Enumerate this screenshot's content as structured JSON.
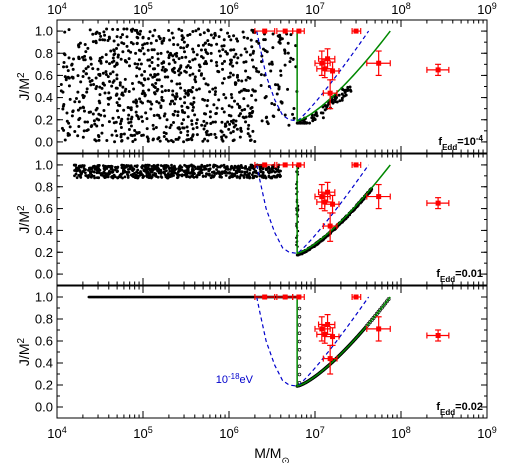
{
  "chart_data": [
    {
      "type": "scatter",
      "panel": "top",
      "xscale": "log",
      "xlim": [
        10000,
        1000000000
      ],
      "ylim": [
        -0.1,
        1.1
      ],
      "ylabel": "J/M^2",
      "annotation": {
        "prefix": "f",
        "sub": "Edd",
        "eq": "=10",
        "sup": "-4"
      },
      "yticks": [
        "0.0",
        "0.2",
        "0.4",
        "0.6",
        "0.8",
        "1.0"
      ],
      "xticks_top": [
        "10^4",
        "10^5",
        "10^6",
        "10^7",
        "10^8",
        "10^9"
      ],
      "simulation": "scattered",
      "measurements": [
        {
          "m": 2600000,
          "j": 1.0,
          "xerr": [
            2000000,
            3400000
          ],
          "yerr": [
            1.0,
            1.0
          ]
        },
        {
          "m": 4500000,
          "j": 1.0,
          "xerr": [
            3600000,
            5500000
          ],
          "yerr": [
            1.0,
            1.0
          ]
        },
        {
          "m": 6500000,
          "j": 1.0,
          "xerr": [
            5500000,
            7500000
          ],
          "yerr": [
            1.0,
            1.0
          ]
        },
        {
          "m": 30000000,
          "j": 1.0,
          "xerr": [
            27000000,
            34000000
          ],
          "yerr": [
            1.0,
            1.0
          ]
        },
        {
          "m": 12000000,
          "j": 0.71,
          "xerr": [
            10000000,
            15000000
          ],
          "yerr": [
            0.6,
            0.82
          ]
        },
        {
          "m": 13000000,
          "j": 0.66,
          "xerr": [
            10500000,
            16000000
          ],
          "yerr": [
            0.58,
            0.74
          ]
        },
        {
          "m": 14000000,
          "j": 0.75,
          "xerr": [
            11000000,
            17000000
          ],
          "yerr": [
            0.66,
            0.84
          ]
        },
        {
          "m": 16000000,
          "j": 0.64,
          "xerr": [
            13000000,
            19000000
          ],
          "yerr": [
            0.56,
            0.72
          ]
        },
        {
          "m": 15000000,
          "j": 0.44,
          "xerr": [
            12500000,
            18000000
          ],
          "yerr": [
            0.3,
            0.56
          ]
        },
        {
          "m": 55000000,
          "j": 0.71,
          "xerr": [
            40000000,
            75000000
          ],
          "yerr": [
            0.6,
            0.82
          ]
        },
        {
          "m": 270000000,
          "j": 0.65,
          "xerr": [
            200000000,
            360000000
          ],
          "yerr": [
            0.6,
            0.7
          ]
        }
      ]
    },
    {
      "type": "scatter",
      "panel": "middle",
      "xscale": "log",
      "xlim": [
        10000,
        1000000000
      ],
      "ylim": [
        -0.1,
        1.1
      ],
      "ylabel": "J/M^2",
      "annotation": {
        "prefix": "f",
        "sub": "Edd",
        "eq": "=0.01",
        "sup": ""
      },
      "yticks": [
        "0.0",
        "0.2",
        "0.4",
        "0.6",
        "0.8",
        "1.0"
      ],
      "simulation": "band"
    },
    {
      "type": "scatter",
      "panel": "bottom",
      "xscale": "log",
      "xlim": [
        10000,
        1000000000
      ],
      "ylim": [
        -0.1,
        1.1
      ],
      "ylabel": "J/M^2",
      "xlabel": "M/M_⊙",
      "annotation": {
        "prefix": "f",
        "sub": "Edd",
        "eq": "=0.02",
        "sup": ""
      },
      "yticks": [
        "0.0",
        "0.2",
        "0.4",
        "0.6",
        "0.8",
        "1.0"
      ],
      "xticks_bottom": [
        "10^4",
        "10^5",
        "10^6",
        "10^7",
        "10^8",
        "10^9"
      ],
      "curve_label": {
        "base": "10",
        "sup": "-18",
        "unit": "eV"
      },
      "simulation": "line"
    }
  ],
  "colors": {
    "simulation": "#000000",
    "measurement": "#ff0000",
    "green_curve": "#008800",
    "blue_curve": "#0000cc"
  }
}
